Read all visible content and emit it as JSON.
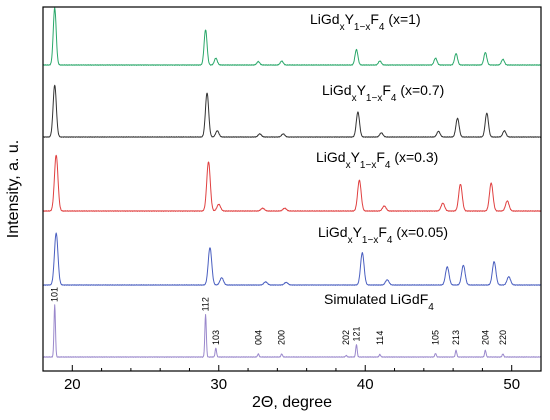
{
  "chart_data": {
    "type": "line",
    "xlabel": "2Θ, degree",
    "ylabel": "Intensity, a. u.",
    "xlim": [
      18,
      52
    ],
    "xticks": [
      20,
      30,
      40,
      50
    ],
    "grid": false,
    "y_ticks_shown": false,
    "series": [
      {
        "name": "LiGdxY1-xF4 (x=1)",
        "label_prefix": "LiGd",
        "label_sub_x": "x",
        "label_mid": "Y",
        "label_sub_1mx": "1−x",
        "label_mid2": "F",
        "label_sub_4": "4",
        "label_suffix": " (x=1)",
        "color": "#2aa86a",
        "peaks": [
          {
            "x": 18.8,
            "y": 1.0
          },
          {
            "x": 29.1,
            "y": 0.62
          },
          {
            "x": 29.8,
            "y": 0.12
          },
          {
            "x": 32.7,
            "y": 0.06
          },
          {
            "x": 34.3,
            "y": 0.07
          },
          {
            "x": 39.4,
            "y": 0.27
          },
          {
            "x": 41.0,
            "y": 0.07
          },
          {
            "x": 44.8,
            "y": 0.12
          },
          {
            "x": 46.2,
            "y": 0.2
          },
          {
            "x": 48.2,
            "y": 0.22
          },
          {
            "x": 49.4,
            "y": 0.1
          }
        ]
      },
      {
        "name": "LiGdxY1-xF4 (x=0.7)",
        "label_prefix": "LiGd",
        "label_sub_x": "x",
        "label_mid": "Y",
        "label_sub_1mx": "1−x",
        "label_mid2": "F",
        "label_sub_4": "4",
        "label_suffix": " (x=0.7)",
        "color": "#333333",
        "peaks": [
          {
            "x": 18.8,
            "y": 1.0
          },
          {
            "x": 29.2,
            "y": 0.85
          },
          {
            "x": 29.9,
            "y": 0.12
          },
          {
            "x": 32.8,
            "y": 0.06
          },
          {
            "x": 34.4,
            "y": 0.06
          },
          {
            "x": 39.5,
            "y": 0.48
          },
          {
            "x": 41.1,
            "y": 0.08
          },
          {
            "x": 45.0,
            "y": 0.11
          },
          {
            "x": 46.3,
            "y": 0.36
          },
          {
            "x": 48.3,
            "y": 0.46
          },
          {
            "x": 49.5,
            "y": 0.12
          }
        ]
      },
      {
        "name": "LiGdxY1-xF4 (x=0.3)",
        "label_prefix": "LiGd",
        "label_sub_x": "x",
        "label_mid": "Y",
        "label_sub_1mx": "1−x",
        "label_mid2": "F",
        "label_sub_4": "4",
        "label_suffix": " (x=0.3)",
        "color": "#e04040",
        "peaks": [
          {
            "x": 18.9,
            "y": 1.0
          },
          {
            "x": 29.3,
            "y": 0.88
          },
          {
            "x": 30.0,
            "y": 0.12
          },
          {
            "x": 33.0,
            "y": 0.05
          },
          {
            "x": 34.5,
            "y": 0.05
          },
          {
            "x": 39.6,
            "y": 0.55
          },
          {
            "x": 41.3,
            "y": 0.09
          },
          {
            "x": 45.3,
            "y": 0.14
          },
          {
            "x": 46.5,
            "y": 0.48
          },
          {
            "x": 48.6,
            "y": 0.5
          },
          {
            "x": 49.7,
            "y": 0.18
          }
        ]
      },
      {
        "name": "LiGdxY1-xF4 (x=0.05)",
        "label_prefix": "LiGd",
        "label_sub_x": "x",
        "label_mid": "Y",
        "label_sub_1mx": "1−x",
        "label_mid2": "F",
        "label_sub_4": "4",
        "label_suffix": " (x=0.05)",
        "color": "#4a5fc0",
        "peaks": [
          {
            "x": 18.9,
            "y": 1.0
          },
          {
            "x": 29.4,
            "y": 0.72
          },
          {
            "x": 30.2,
            "y": 0.14
          },
          {
            "x": 33.2,
            "y": 0.06
          },
          {
            "x": 34.6,
            "y": 0.05
          },
          {
            "x": 39.8,
            "y": 0.62
          },
          {
            "x": 41.5,
            "y": 0.1
          },
          {
            "x": 45.6,
            "y": 0.35
          },
          {
            "x": 46.7,
            "y": 0.38
          },
          {
            "x": 48.8,
            "y": 0.45
          },
          {
            "x": 49.8,
            "y": 0.16
          }
        ]
      },
      {
        "name": "Simulated LiGdF4",
        "label_prefix": "Simulated LiGdF",
        "label_sub_4": "4",
        "color": "#9a88cc",
        "peaks": [
          {
            "x": 18.8,
            "y": 1.0,
            "hkl": "101"
          },
          {
            "x": 29.1,
            "y": 0.82,
            "hkl": "112"
          },
          {
            "x": 29.8,
            "y": 0.17,
            "hkl": "103"
          },
          {
            "x": 32.7,
            "y": 0.06,
            "hkl": "004"
          },
          {
            "x": 34.3,
            "y": 0.06,
            "hkl": "200"
          },
          {
            "x": 38.7,
            "y": 0.03,
            "hkl": "202"
          },
          {
            "x": 39.4,
            "y": 0.24,
            "hkl": "121"
          },
          {
            "x": 41.0,
            "y": 0.05,
            "hkl": "114"
          },
          {
            "x": 44.8,
            "y": 0.07,
            "hkl": "105"
          },
          {
            "x": 46.2,
            "y": 0.13,
            "hkl": "213"
          },
          {
            "x": 48.2,
            "y": 0.13,
            "hkl": "204"
          },
          {
            "x": 49.4,
            "y": 0.06,
            "hkl": "220"
          }
        ]
      }
    ]
  }
}
